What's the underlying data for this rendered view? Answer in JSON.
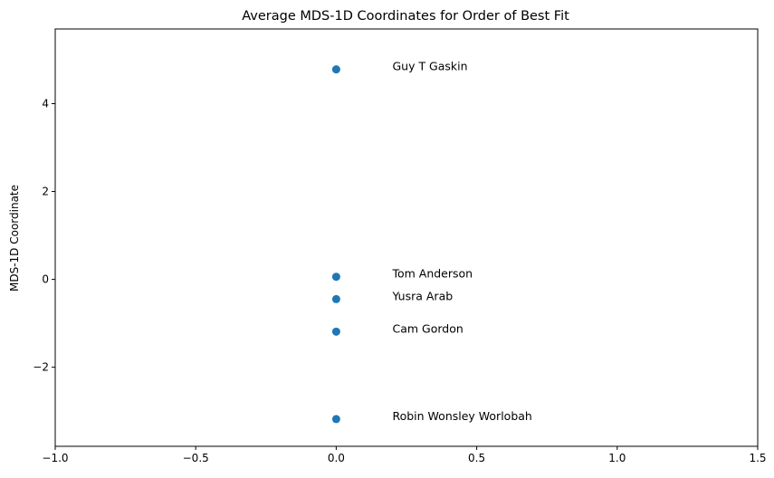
{
  "chart_data": {
    "type": "scatter",
    "title": "Average MDS-1D Coordinates for Order of Best Fit",
    "xlabel": "",
    "ylabel": "MDS-1D Coordinate",
    "xlim": [
      -1.0,
      1.5
    ],
    "ylim": [
      -3.8,
      5.7
    ],
    "x_ticks": [
      -1.0,
      -0.5,
      0.0,
      0.5,
      1.0,
      1.5
    ],
    "x_tick_labels": [
      "−1.0",
      "−0.5",
      "0.0",
      "0.5",
      "1.0",
      "1.5"
    ],
    "y_ticks": [
      -2,
      0,
      2,
      4
    ],
    "y_tick_labels": [
      "−2",
      "0",
      "2",
      "4"
    ],
    "grid": false,
    "series": [
      {
        "color": "#1f77b4",
        "points": [
          {
            "x": 0.0,
            "y": 4.78,
            "label": "Guy T Gaskin"
          },
          {
            "x": 0.0,
            "y": 0.06,
            "label": "Tom Anderson"
          },
          {
            "x": 0.0,
            "y": -0.45,
            "label": "Yusra Arab"
          },
          {
            "x": 0.0,
            "y": -1.19,
            "label": "Cam Gordon"
          },
          {
            "x": 0.0,
            "y": -3.18,
            "label": "Robin Wonsley Worlobah"
          }
        ],
        "annotation_dx": 0.2
      }
    ]
  }
}
